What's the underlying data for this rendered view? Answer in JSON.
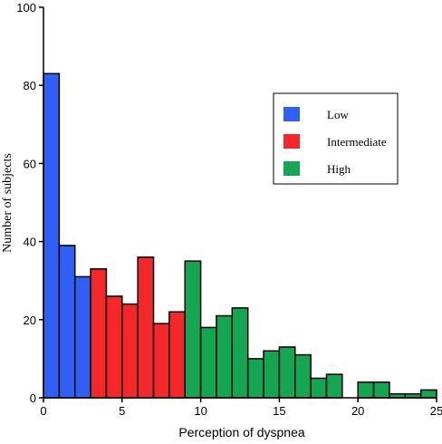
{
  "chart_data": {
    "type": "bar",
    "xlabel": "Perception of dyspnea",
    "ylabel": "Number of subjects",
    "xlim": [
      0,
      25
    ],
    "ylim": [
      0,
      100
    ],
    "xticks": [
      0,
      5,
      10,
      15,
      20,
      25
    ],
    "yticks": [
      0,
      20,
      40,
      60,
      80,
      100
    ],
    "bin_width": 1,
    "grid": false,
    "legend_position": "upper-right",
    "series": [
      {
        "name": "Low",
        "color": "#2f5ff5",
        "x": [
          0,
          1,
          2
        ],
        "values": [
          83,
          39,
          31
        ]
      },
      {
        "name": "Intermediate",
        "color": "#f4282a",
        "x": [
          3,
          4,
          5,
          6,
          7,
          8
        ],
        "values": [
          33,
          26,
          24,
          36,
          19,
          22
        ]
      },
      {
        "name": "High",
        "color": "#14a651",
        "x": [
          9,
          10,
          11,
          12,
          13,
          14,
          15,
          16,
          17,
          18,
          19,
          20,
          21,
          22,
          23,
          24
        ],
        "values": [
          35,
          18,
          21,
          23,
          10,
          12,
          13,
          11,
          5,
          6,
          0,
          4,
          4,
          1,
          1,
          2
        ]
      }
    ]
  }
}
